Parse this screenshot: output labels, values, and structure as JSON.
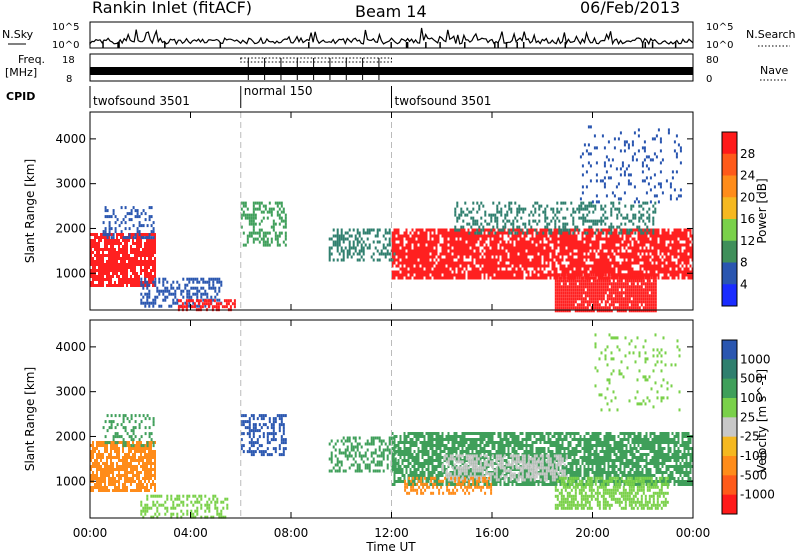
{
  "header": {
    "station": "Rankin Inlet (fitACF)",
    "beam": "Beam 14",
    "date": "06/Feb/2013"
  },
  "noise_panel": {
    "left_label": "N.Sky",
    "right_label": "N.Search",
    "left_ticks": [
      "10^5",
      "10^0"
    ],
    "right_ticks": [
      "10^5",
      "10^0"
    ]
  },
  "freq_panel": {
    "left_label_1": "Freq.",
    "left_label_2": "[MHz]",
    "right_label": "Nave",
    "left_ticks": [
      "18",
      "8"
    ],
    "right_ticks": [
      "80",
      "0"
    ]
  },
  "cpid_panel": {
    "label": "CPID",
    "segments": [
      {
        "name": "twofsound 3501",
        "start_hour": 0,
        "end_hour": 6
      },
      {
        "name": "normal 150",
        "start_hour": 6,
        "end_hour": 12
      },
      {
        "name": "twofsound 3501",
        "start_hour": 12,
        "end_hour": 24
      }
    ]
  },
  "x_axis": {
    "label": "Time UT",
    "ticks": [
      "00:00",
      "04:00",
      "08:00",
      "12:00",
      "16:00",
      "20:00",
      "00:00"
    ]
  },
  "colors": {
    "red": "#ff2020",
    "orange": "#ff8c1a",
    "yellow_orange": "#f5b820",
    "green": "#7ad14a",
    "dark_green": "#3f9f5a",
    "teal": "#2f7f6e",
    "blue": "#2a56b0",
    "bright_blue": "#1a2cff",
    "grey": "#c8c8c8"
  },
  "chart_data": [
    {
      "type": "heatmap",
      "title": "Power",
      "ylabel": "Slant Range [km]",
      "xlabel": "",
      "xlim_hours": [
        0,
        24
      ],
      "ylim": [
        180,
        4600
      ],
      "y_ticks": [
        "1000",
        "2000",
        "3000",
        "4000"
      ],
      "colorbar": {
        "label": "Power [dB]",
        "ticks": [
          "28",
          "24",
          "20",
          "16",
          "12",
          "8",
          "4"
        ],
        "colors": [
          "#ff1a1a",
          "#ff5a1a",
          "#ff8c1a",
          "#f5b820",
          "#7ad14a",
          "#3f8f5a",
          "#2a56b0",
          "#1a2cff"
        ]
      },
      "regions": [
        {
          "t0": 0.0,
          "t1": 2.6,
          "r0": 700,
          "r1": 1900,
          "color": "red",
          "density": 0.85
        },
        {
          "t0": 0.5,
          "t1": 2.5,
          "r0": 1800,
          "r1": 2500,
          "color": "blue",
          "density": 0.35
        },
        {
          "t0": 2.0,
          "t1": 5.2,
          "r0": 250,
          "r1": 900,
          "color": "blue",
          "density": 0.45
        },
        {
          "t0": 3.5,
          "t1": 5.8,
          "r0": 180,
          "r1": 420,
          "color": "red",
          "density": 0.5
        },
        {
          "t0": 6.0,
          "t1": 7.8,
          "r0": 1600,
          "r1": 2600,
          "color": "dark_green",
          "density": 0.45
        },
        {
          "t0": 9.5,
          "t1": 12.2,
          "r0": 1300,
          "r1": 2000,
          "color": "teal",
          "density": 0.4
        },
        {
          "t0": 12.0,
          "t1": 24.0,
          "r0": 900,
          "r1": 2000,
          "color": "red",
          "density": 0.8
        },
        {
          "t0": 14.5,
          "t1": 22.5,
          "r0": 1900,
          "r1": 2600,
          "color": "teal",
          "density": 0.35
        },
        {
          "t0": 18.5,
          "t1": 22.5,
          "r0": 180,
          "r1": 1000,
          "color": "red",
          "density": 0.9
        },
        {
          "t0": 19.5,
          "t1": 23.5,
          "r0": 2600,
          "r1": 4300,
          "color": "blue",
          "density": 0.12
        }
      ]
    },
    {
      "type": "heatmap",
      "title": "Velocity",
      "ylabel": "Slant Range [km]",
      "xlabel": "Time UT",
      "xlim_hours": [
        0,
        24
      ],
      "ylim": [
        180,
        4600
      ],
      "y_ticks": [
        "1000",
        "2000",
        "3000",
        "4000"
      ],
      "colorbar": {
        "label": "Velocity [m s^-1]",
        "ticks": [
          "1000",
          "500",
          "100",
          "25",
          "-25",
          "-100",
          "-500",
          "-1000"
        ],
        "colors": [
          "#2a56b0",
          "#2f7f6e",
          "#3f9f5a",
          "#7ad14a",
          "#c8c8c8",
          "#f5b820",
          "#ff8c1a",
          "#ff5a1a",
          "#ff1a1a"
        ]
      },
      "regions": [
        {
          "t0": 0.0,
          "t1": 2.6,
          "r0": 800,
          "r1": 1900,
          "color": "orange",
          "density": 0.75
        },
        {
          "t0": 0.5,
          "t1": 2.5,
          "r0": 1800,
          "r1": 2500,
          "color": "dark_green",
          "density": 0.35
        },
        {
          "t0": 2.0,
          "t1": 5.5,
          "r0": 200,
          "r1": 700,
          "color": "green",
          "density": 0.4
        },
        {
          "t0": 6.0,
          "t1": 7.8,
          "r0": 1600,
          "r1": 2500,
          "color": "blue",
          "density": 0.45
        },
        {
          "t0": 9.5,
          "t1": 12.2,
          "r0": 1200,
          "r1": 2000,
          "color": "dark_green",
          "density": 0.4
        },
        {
          "t0": 12.0,
          "t1": 24.0,
          "r0": 900,
          "r1": 2100,
          "color": "dark_green",
          "density": 0.75
        },
        {
          "t0": 14.0,
          "t1": 19.0,
          "r0": 1000,
          "r1": 1600,
          "color": "grey",
          "density": 0.6
        },
        {
          "t0": 18.5,
          "t1": 23.0,
          "r0": 400,
          "r1": 1100,
          "color": "green",
          "density": 0.6
        },
        {
          "t0": 12.5,
          "t1": 16.0,
          "r0": 700,
          "r1": 1100,
          "color": "orange",
          "density": 0.5
        },
        {
          "t0": 20.0,
          "t1": 23.5,
          "r0": 2600,
          "r1": 4300,
          "color": "green",
          "density": 0.1
        }
      ]
    }
  ]
}
